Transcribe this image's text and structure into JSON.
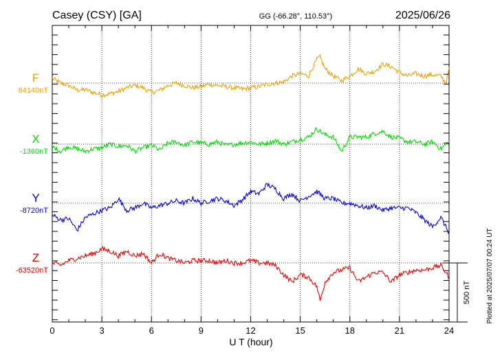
{
  "header": {
    "station": "Casey (CSY)  [GA]",
    "coords": "GG (-66.28°, 110.53°)",
    "date": "2025/06/26"
  },
  "footer": {
    "plotted": "Plotted at 2025/07/07 00:24 UT"
  },
  "chart_data": {
    "type": "line",
    "xlabel": "U T (hour)",
    "xlim": [
      0,
      24
    ],
    "x_ticks": [
      0,
      3,
      6,
      9,
      12,
      15,
      18,
      21,
      24
    ],
    "grid": true,
    "scale_bar": {
      "label": "500 nT",
      "value_nT": 500
    },
    "series": [
      {
        "name": "F",
        "baseline_label": "64140nT",
        "baseline_nT": 64140,
        "color": "#f0a000",
        "points": [
          [
            0,
            40
          ],
          [
            0.5,
            0
          ],
          [
            1,
            -20
          ],
          [
            1.5,
            -60
          ],
          [
            2,
            -55
          ],
          [
            2.5,
            -80
          ],
          [
            3,
            -100
          ],
          [
            3.5,
            -90
          ],
          [
            4,
            -70
          ],
          [
            4.5,
            -40
          ],
          [
            5,
            -20
          ],
          [
            5.5,
            -40
          ],
          [
            6,
            -80
          ],
          [
            6.5,
            -60
          ],
          [
            7,
            -20
          ],
          [
            7.5,
            0
          ],
          [
            8,
            -20
          ],
          [
            8.5,
            -40
          ],
          [
            9,
            -30
          ],
          [
            9.5,
            -10
          ],
          [
            10,
            -20
          ],
          [
            10.5,
            -30
          ],
          [
            11,
            -40
          ],
          [
            11.5,
            -50
          ],
          [
            12,
            -40
          ],
          [
            12.5,
            -30
          ],
          [
            13,
            -10
          ],
          [
            13.5,
            0
          ],
          [
            14,
            10
          ],
          [
            14.5,
            60
          ],
          [
            15,
            80
          ],
          [
            15.5,
            60
          ],
          [
            16,
            200
          ],
          [
            16.2,
            220
          ],
          [
            16.5,
            120
          ],
          [
            17,
            60
          ],
          [
            17.5,
            20
          ],
          [
            18,
            60
          ],
          [
            18.5,
            120
          ],
          [
            19,
            80
          ],
          [
            19.5,
            100
          ],
          [
            20,
            160
          ],
          [
            20.5,
            140
          ],
          [
            21,
            90
          ],
          [
            21.5,
            60
          ],
          [
            22,
            80
          ],
          [
            22.5,
            60
          ],
          [
            23,
            70
          ],
          [
            23.5,
            60
          ],
          [
            23.8,
            0
          ],
          [
            24,
            120
          ]
        ]
      },
      {
        "name": "X",
        "baseline_label": "-1360nT",
        "baseline_nT": -1360,
        "color": "#00dd00",
        "points": [
          [
            0,
            -20
          ],
          [
            0.5,
            -60
          ],
          [
            1,
            -20
          ],
          [
            1.5,
            -40
          ],
          [
            2,
            -60
          ],
          [
            2.5,
            -40
          ],
          [
            3,
            -30
          ],
          [
            3.5,
            0
          ],
          [
            4,
            -20
          ],
          [
            4.5,
            -10
          ],
          [
            5,
            -60
          ],
          [
            5.5,
            -30
          ],
          [
            6,
            -10
          ],
          [
            6.5,
            -50
          ],
          [
            7,
            10
          ],
          [
            7.5,
            20
          ],
          [
            8,
            -10
          ],
          [
            8.5,
            20
          ],
          [
            9,
            10
          ],
          [
            9.5,
            0
          ],
          [
            10,
            20
          ],
          [
            10.5,
            -10
          ],
          [
            11,
            0
          ],
          [
            11.5,
            10
          ],
          [
            12,
            20
          ],
          [
            12.5,
            0
          ],
          [
            13,
            10
          ],
          [
            13.5,
            30
          ],
          [
            14,
            0
          ],
          [
            14.5,
            20
          ],
          [
            15,
            40
          ],
          [
            15.5,
            60
          ],
          [
            16,
            130
          ],
          [
            16.5,
            80
          ],
          [
            17,
            60
          ],
          [
            17.5,
            -60
          ],
          [
            18,
            60
          ],
          [
            18.5,
            60
          ],
          [
            19,
            60
          ],
          [
            19.5,
            90
          ],
          [
            20,
            110
          ],
          [
            20.5,
            60
          ],
          [
            21,
            50
          ],
          [
            21.5,
            20
          ],
          [
            22,
            20
          ],
          [
            22.5,
            0
          ],
          [
            23,
            20
          ],
          [
            23.5,
            -40
          ],
          [
            24,
            20
          ]
        ]
      },
      {
        "name": "Y",
        "baseline_label": "-8720nT",
        "baseline_nT": -8720,
        "color": "#0000dd",
        "points": [
          [
            0,
            -100
          ],
          [
            0.5,
            -140
          ],
          [
            1,
            -130
          ],
          [
            1.5,
            -230
          ],
          [
            2,
            -120
          ],
          [
            2.5,
            -90
          ],
          [
            3,
            -60
          ],
          [
            3.5,
            -40
          ],
          [
            4,
            40
          ],
          [
            4.5,
            -60
          ],
          [
            5,
            -40
          ],
          [
            5.5,
            0
          ],
          [
            6,
            -40
          ],
          [
            6.5,
            -20
          ],
          [
            7,
            0
          ],
          [
            7.5,
            20
          ],
          [
            8,
            0
          ],
          [
            8.5,
            40
          ],
          [
            9,
            0
          ],
          [
            9.5,
            20
          ],
          [
            10,
            40
          ],
          [
            10.5,
            20
          ],
          [
            11,
            -20
          ],
          [
            11.5,
            30
          ],
          [
            12,
            100
          ],
          [
            12.5,
            80
          ],
          [
            13,
            160
          ],
          [
            13.5,
            120
          ],
          [
            14,
            40
          ],
          [
            14.5,
            80
          ],
          [
            15,
            20
          ],
          [
            15.5,
            60
          ],
          [
            16,
            100
          ],
          [
            16.5,
            40
          ],
          [
            17,
            40
          ],
          [
            17.5,
            0
          ],
          [
            18,
            0
          ],
          [
            18.5,
            -20
          ],
          [
            19,
            -40
          ],
          [
            19.5,
            -20
          ],
          [
            20,
            -60
          ],
          [
            20.5,
            -40
          ],
          [
            21,
            -40
          ],
          [
            21.5,
            -40
          ],
          [
            22,
            -80
          ],
          [
            22.5,
            -140
          ],
          [
            23,
            -200
          ],
          [
            23.5,
            -120
          ],
          [
            24,
            -250
          ]
        ]
      },
      {
        "name": "Z",
        "baseline_label": "-63520nT",
        "baseline_nT": -63520,
        "color": "#ee0000",
        "points": [
          [
            0,
            0
          ],
          [
            0.5,
            -20
          ],
          [
            1,
            20
          ],
          [
            1.5,
            40
          ],
          [
            2,
            60
          ],
          [
            2.5,
            80
          ],
          [
            3,
            120
          ],
          [
            3.5,
            100
          ],
          [
            4,
            60
          ],
          [
            4.5,
            100
          ],
          [
            5,
            60
          ],
          [
            5.5,
            80
          ],
          [
            6,
            0
          ],
          [
            6.5,
            80
          ],
          [
            7,
            40
          ],
          [
            7.5,
            20
          ],
          [
            8,
            0
          ],
          [
            8.5,
            20
          ],
          [
            9,
            20
          ],
          [
            9.5,
            20
          ],
          [
            10,
            0
          ],
          [
            10.5,
            20
          ],
          [
            11,
            0
          ],
          [
            11.5,
            0
          ],
          [
            12,
            20
          ],
          [
            12.5,
            0
          ],
          [
            13,
            0
          ],
          [
            13.5,
            -20
          ],
          [
            14,
            -100
          ],
          [
            14.5,
            -160
          ],
          [
            15,
            -100
          ],
          [
            15.5,
            -120
          ],
          [
            16,
            -200
          ],
          [
            16.2,
            -320
          ],
          [
            16.5,
            -160
          ],
          [
            17,
            -80
          ],
          [
            17.5,
            -60
          ],
          [
            18,
            -40
          ],
          [
            18.5,
            -160
          ],
          [
            19,
            -120
          ],
          [
            19.5,
            -80
          ],
          [
            20,
            -80
          ],
          [
            20.5,
            -160
          ],
          [
            21,
            -100
          ],
          [
            21.5,
            -80
          ],
          [
            22,
            -60
          ],
          [
            22.5,
            -60
          ],
          [
            23,
            -40
          ],
          [
            23.5,
            -20
          ],
          [
            24,
            -120
          ]
        ]
      }
    ]
  }
}
